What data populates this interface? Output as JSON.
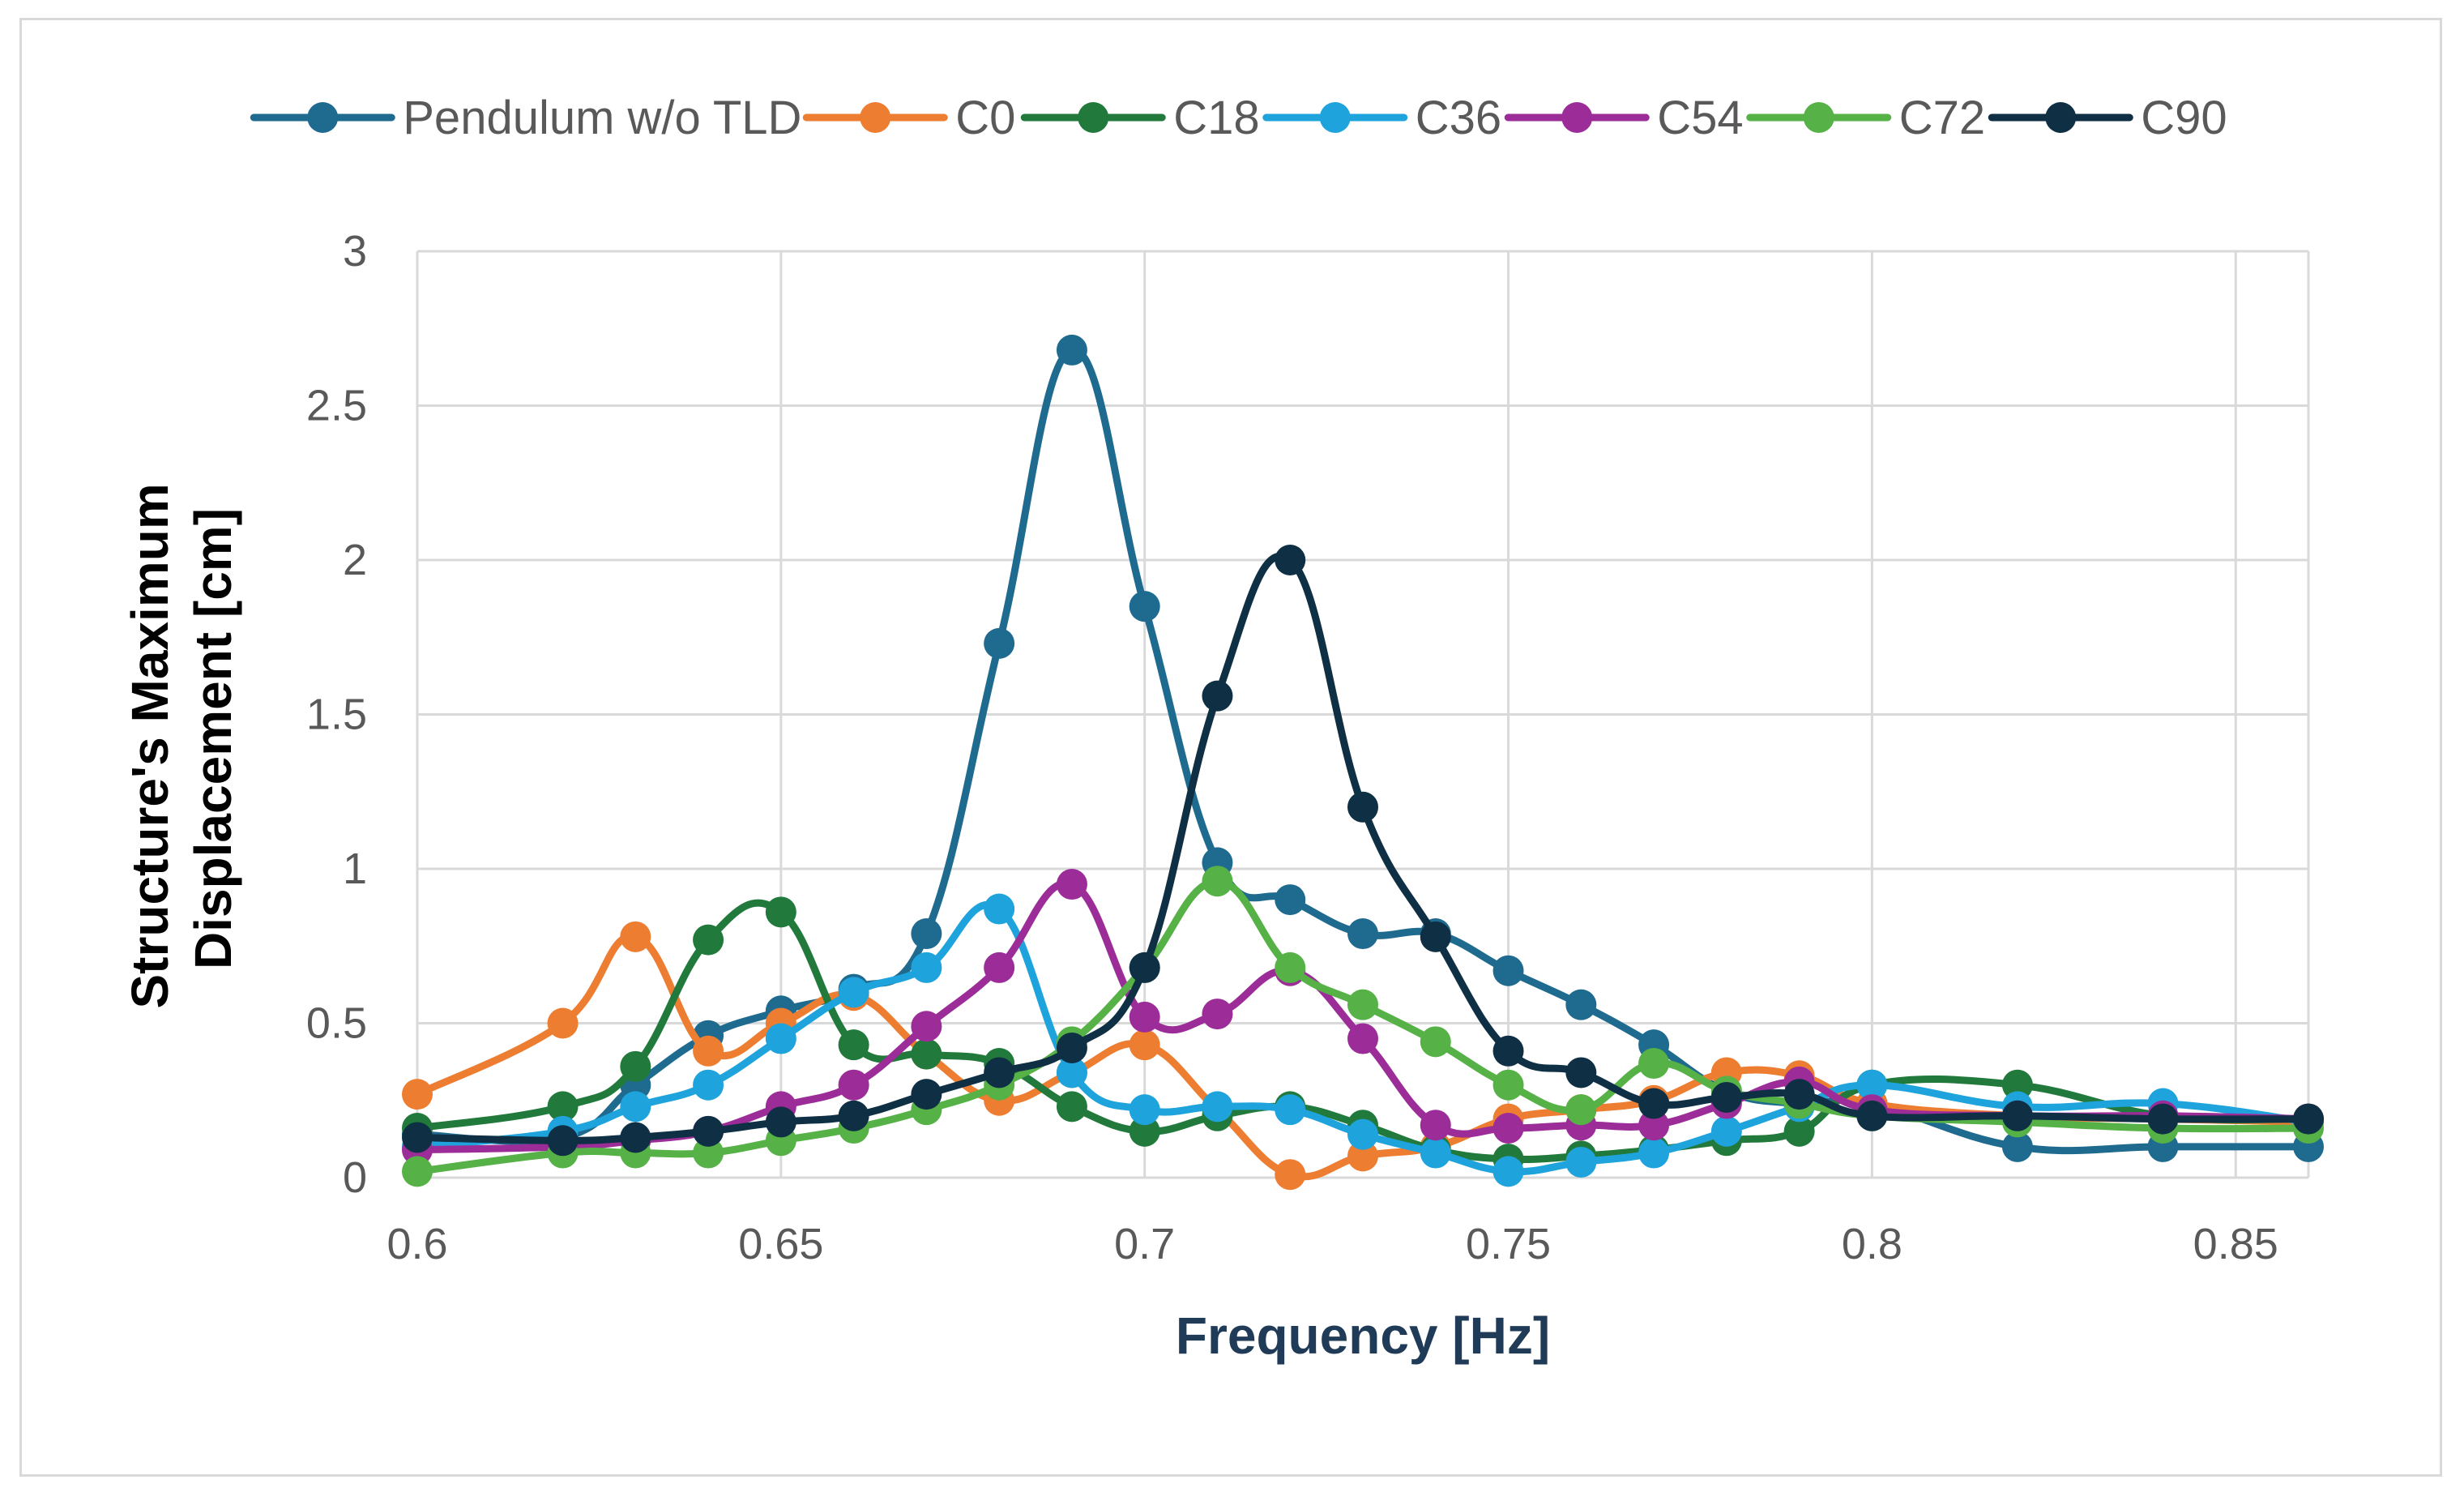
{
  "chart_data": {
    "type": "line",
    "title": "",
    "xlabel": "Frequency [Hz]",
    "ylabel_lines": [
      "Structure's Maximum",
      "Displacement [cm]"
    ],
    "xlabel_color": "#1f3b57",
    "ylabel_color": "#000000",
    "xlim": [
      0.6,
      0.86
    ],
    "ylim": [
      0,
      3
    ],
    "x_ticks": [
      0.6,
      0.65,
      0.7,
      0.75,
      0.8,
      0.85
    ],
    "x_tick_labels": [
      "0.6",
      "0.65",
      "0.7",
      "0.75",
      "0.8",
      "0.85"
    ],
    "y_ticks": [
      0,
      0.5,
      1,
      1.5,
      2,
      2.5,
      3
    ],
    "y_tick_labels": [
      "0",
      "0.5",
      "1",
      "1.5",
      "2",
      "2.5",
      "3"
    ],
    "grid": true,
    "legend_position": "top",
    "series": [
      {
        "name": "Pendulum w/o TLD",
        "color": "#1f6b8f",
        "x": [
          0.6,
          0.62,
          0.63,
          0.64,
          0.65,
          0.66,
          0.67,
          0.68,
          0.69,
          0.7,
          0.71,
          0.72,
          0.73,
          0.74,
          0.75,
          0.76,
          0.77,
          0.78,
          0.79,
          0.8,
          0.82,
          0.84,
          0.86
        ],
        "y": [
          0.14,
          0.13,
          0.3,
          0.46,
          0.54,
          0.61,
          0.79,
          1.73,
          2.68,
          1.85,
          1.02,
          0.9,
          0.79,
          0.79,
          0.67,
          0.56,
          0.43,
          0.28,
          0.24,
          0.24,
          0.1,
          0.1,
          0.1
        ]
      },
      {
        "name": "C0",
        "color": "#ed7d31",
        "x": [
          0.6,
          0.62,
          0.63,
          0.64,
          0.65,
          0.66,
          0.67,
          0.68,
          0.69,
          0.7,
          0.71,
          0.72,
          0.73,
          0.74,
          0.75,
          0.76,
          0.77,
          0.78,
          0.79,
          0.8,
          0.82,
          0.84,
          0.86
        ],
        "y": [
          0.27,
          0.5,
          0.78,
          0.41,
          0.5,
          0.59,
          0.4,
          0.25,
          0.34,
          0.43,
          0.22,
          0.01,
          0.07,
          0.1,
          0.19,
          0.22,
          0.25,
          0.34,
          0.33,
          0.24,
          0.2,
          0.19,
          0.18
        ]
      },
      {
        "name": "C18",
        "color": "#217a3c",
        "x": [
          0.6,
          0.62,
          0.63,
          0.64,
          0.65,
          0.66,
          0.67,
          0.68,
          0.69,
          0.7,
          0.71,
          0.72,
          0.73,
          0.74,
          0.75,
          0.76,
          0.77,
          0.78,
          0.79,
          0.8,
          0.82,
          0.84,
          0.86
        ],
        "y": [
          0.16,
          0.23,
          0.36,
          0.77,
          0.86,
          0.43,
          0.4,
          0.37,
          0.23,
          0.15,
          0.2,
          0.23,
          0.17,
          0.09,
          0.06,
          0.07,
          0.09,
          0.12,
          0.15,
          0.3,
          0.3,
          0.2,
          0.19
        ]
      },
      {
        "name": "C36",
        "color": "#1ea3dc",
        "x": [
          0.6,
          0.62,
          0.63,
          0.64,
          0.65,
          0.66,
          0.67,
          0.68,
          0.69,
          0.7,
          0.71,
          0.72,
          0.73,
          0.74,
          0.75,
          0.76,
          0.77,
          0.78,
          0.79,
          0.8,
          0.82,
          0.84,
          0.86
        ],
        "y": [
          0.1,
          0.15,
          0.23,
          0.3,
          0.45,
          0.6,
          0.68,
          0.87,
          0.34,
          0.22,
          0.23,
          0.22,
          0.14,
          0.08,
          0.02,
          0.05,
          0.08,
          0.15,
          0.23,
          0.3,
          0.23,
          0.24,
          0.18
        ]
      },
      {
        "name": "C54",
        "color": "#9b2c98",
        "x": [
          0.6,
          0.62,
          0.63,
          0.64,
          0.65,
          0.66,
          0.67,
          0.68,
          0.69,
          0.7,
          0.71,
          0.72,
          0.73,
          0.74,
          0.75,
          0.76,
          0.77,
          0.78,
          0.79,
          0.8,
          0.82,
          0.84,
          0.86
        ],
        "y": [
          0.09,
          0.1,
          0.12,
          0.15,
          0.23,
          0.3,
          0.49,
          0.68,
          0.95,
          0.52,
          0.53,
          0.67,
          0.45,
          0.17,
          0.16,
          0.17,
          0.17,
          0.24,
          0.31,
          0.22,
          0.2,
          0.2,
          0.19
        ]
      },
      {
        "name": "C72",
        "color": "#56b147",
        "x": [
          0.6,
          0.62,
          0.63,
          0.64,
          0.65,
          0.66,
          0.67,
          0.68,
          0.69,
          0.7,
          0.71,
          0.72,
          0.73,
          0.74,
          0.75,
          0.76,
          0.77,
          0.78,
          0.79,
          0.8,
          0.82,
          0.84,
          0.86
        ],
        "y": [
          0.02,
          0.08,
          0.08,
          0.08,
          0.12,
          0.16,
          0.22,
          0.3,
          0.44,
          0.68,
          0.96,
          0.68,
          0.56,
          0.44,
          0.3,
          0.22,
          0.37,
          0.28,
          0.24,
          0.2,
          0.18,
          0.16,
          0.16
        ]
      },
      {
        "name": "C90",
        "color": "#0e2f44",
        "x": [
          0.6,
          0.62,
          0.63,
          0.64,
          0.65,
          0.66,
          0.67,
          0.68,
          0.69,
          0.7,
          0.71,
          0.72,
          0.73,
          0.74,
          0.75,
          0.76,
          0.77,
          0.78,
          0.79,
          0.8,
          0.82,
          0.84,
          0.86
        ],
        "y": [
          0.13,
          0.12,
          0.13,
          0.15,
          0.18,
          0.2,
          0.27,
          0.34,
          0.42,
          0.68,
          1.56,
          2.0,
          1.2,
          0.78,
          0.41,
          0.34,
          0.24,
          0.26,
          0.27,
          0.2,
          0.2,
          0.19,
          0.19
        ]
      }
    ]
  }
}
